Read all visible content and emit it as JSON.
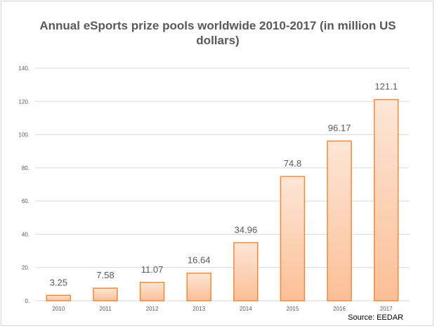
{
  "chart_data": {
    "type": "bar",
    "title": "Annual eSports prize pools worldwide 2010-2017 (in million US dollars)",
    "categories": [
      "2010",
      "2011",
      "2012",
      "2013",
      "2014",
      "2015",
      "2016",
      "2017"
    ],
    "values": [
      3.25,
      7.58,
      11.07,
      16.64,
      34.96,
      74.8,
      96.17,
      121.1
    ],
    "data_labels": [
      "3.25",
      "7.58",
      "11.07",
      "16.64",
      "34.96",
      "74.8",
      "96.17",
      "121.1"
    ],
    "y_ticks": [
      "0.",
      "20.",
      "40.",
      "60.",
      "80.",
      "100.",
      "120.",
      "140."
    ],
    "ylim": [
      0,
      140
    ],
    "xlabel": "",
    "ylabel": "",
    "grid": true,
    "legend": "none",
    "colors": {
      "bar_top": "#fde6d6",
      "bar_bottom": "#fbbf97",
      "bar_border": "#ee8a3c",
      "grid": "#d9d9d9"
    }
  },
  "source": "Source: EEDAR"
}
